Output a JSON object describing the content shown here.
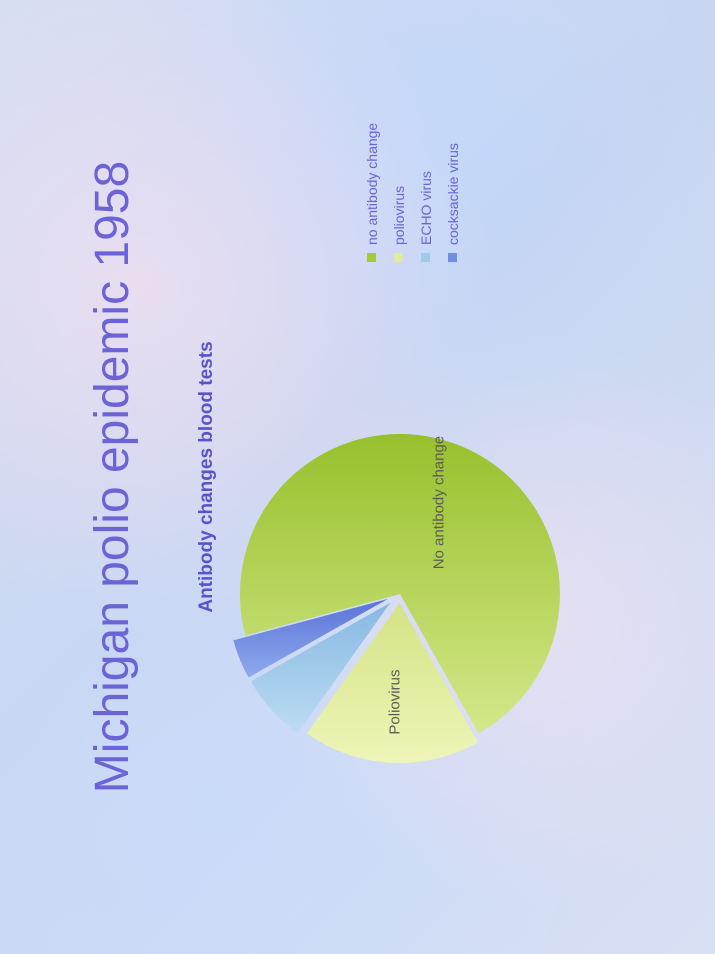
{
  "slide": {
    "title": "Michigan polio epidemic 1958",
    "subtitle": "Antibody changes blood tests"
  },
  "chart_data": {
    "type": "pie",
    "title": "Antibody changes blood tests",
    "slices": [
      {
        "label": "no antibody change",
        "value": 71,
        "color": "#a4c93c",
        "data_label": "No antibody change"
      },
      {
        "label": "poliovirus",
        "value": 18,
        "color": "#dfea9c",
        "data_label": "Poliovirus"
      },
      {
        "label": "ECHO virus",
        "value": 7,
        "color": "#9fcbea",
        "data_label": ""
      },
      {
        "label": "cocksackie virus",
        "value": 4,
        "color": "#6f8fe2",
        "data_label": ""
      }
    ],
    "legend": {
      "placement": "right",
      "entries": [
        "no antibody change",
        "poliovirus",
        "ECHO virus",
        "cocksackie virus"
      ]
    }
  },
  "colors": {
    "title": "#6b63d6",
    "subtitle": "#5a52c8",
    "legend_text": "#6b63d6",
    "slice_label": "#5c5c5c"
  }
}
